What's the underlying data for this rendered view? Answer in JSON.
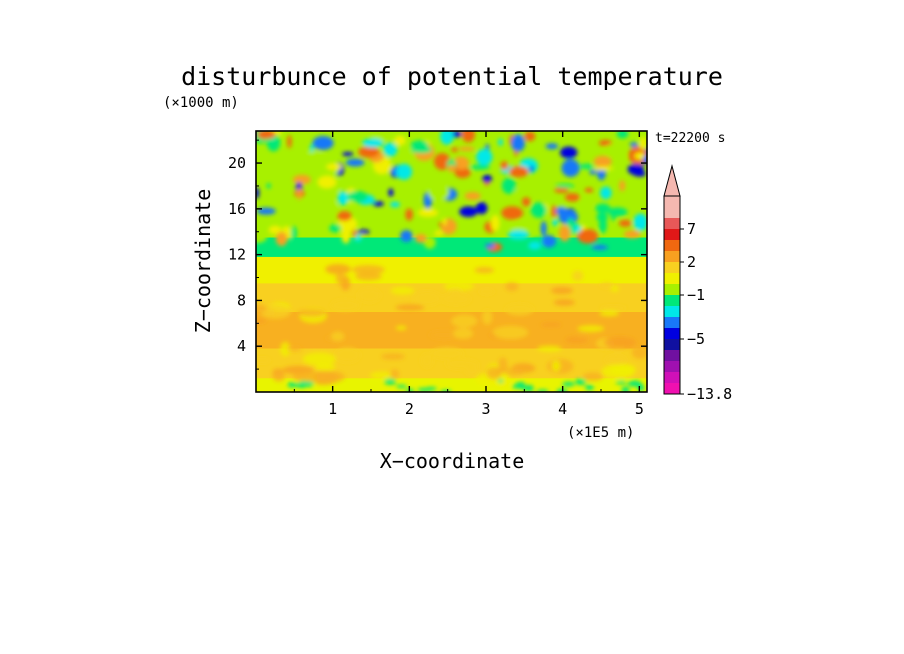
{
  "chart_data": {
    "type": "heatmap",
    "title": "disturbunce of potential temperature",
    "time_label": "t=22200 s",
    "xlabel": "X−coordinate",
    "ylabel": "Z−coordinate",
    "x_unit": "(×1E5 m)",
    "y_unit": "(×1000 m)",
    "xlim": [
      0,
      5.1
    ],
    "ylim": [
      0,
      22.8
    ],
    "xticks": [
      {
        "value": 1,
        "label": "1"
      },
      {
        "value": 2,
        "label": "2"
      },
      {
        "value": 3,
        "label": "3"
      },
      {
        "value": 4,
        "label": "4"
      },
      {
        "value": 5,
        "label": "5"
      }
    ],
    "yticks": [
      {
        "value": 4,
        "label": "4"
      },
      {
        "value": 8,
        "label": "8"
      },
      {
        "value": 12,
        "label": "12"
      },
      {
        "value": 16,
        "label": "16"
      },
      {
        "value": 20,
        "label": "20"
      }
    ],
    "colorbar": {
      "min_label": "−13.8",
      "tick_labels": [
        {
          "value": 7,
          "label": "7"
        },
        {
          "value": 2,
          "label": "2"
        },
        {
          "value": -1,
          "label": "−1"
        },
        {
          "value": -5,
          "label": "−5"
        },
        {
          "value": -13.8,
          "label": "−13.8"
        }
      ],
      "levels_top_to_bottom": [
        {
          "color": "#f5b8b0"
        },
        {
          "color": "#f5b8b0"
        },
        {
          "color": "#e85858"
        },
        {
          "color": "#e01818"
        },
        {
          "color": "#f06810"
        },
        {
          "color": "#f8a020"
        },
        {
          "color": "#f8d020"
        },
        {
          "color": "#f0f000"
        },
        {
          "color": "#a8f000"
        },
        {
          "color": "#00e878"
        },
        {
          "color": "#00e8e8"
        },
        {
          "color": "#1878f8"
        },
        {
          "color": "#0000e0"
        },
        {
          "color": "#1010a0"
        },
        {
          "color": "#7010a0"
        },
        {
          "color": "#a010b0"
        },
        {
          "color": "#d010b8"
        },
        {
          "color": "#f010b0"
        }
      ]
    },
    "field_bands": [
      {
        "z_from": 0,
        "z_to": 1.2,
        "dominant": "yellow-green",
        "color": "#e8f400"
      },
      {
        "z_from": 1.2,
        "z_to": 3.8,
        "dominant": "light orange",
        "color": "#f8d020"
      },
      {
        "z_from": 3.8,
        "z_to": 7.0,
        "dominant": "orange",
        "color": "#f8b020"
      },
      {
        "z_from": 7.0,
        "z_to": 9.5,
        "dominant": "light orange",
        "color": "#f8d020"
      },
      {
        "z_from": 9.5,
        "z_to": 11.8,
        "dominant": "yellow",
        "color": "#f0f000"
      },
      {
        "z_from": 11.8,
        "z_to": 13.5,
        "dominant": "green",
        "color": "#00e878"
      },
      {
        "z_from": 13.5,
        "z_to": 22.8,
        "dominant": "mixed",
        "color": "#a8f000"
      }
    ]
  }
}
